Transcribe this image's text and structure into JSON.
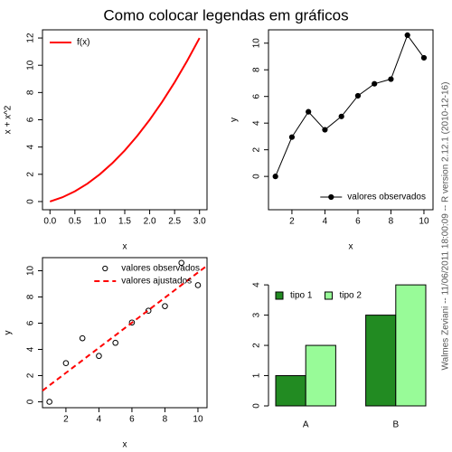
{
  "title": "Como colocar legendas em gráficos",
  "caption": "Walmes Zeviani -- 11/06/2011 18:00:09 -- R version 2.12.1 (2010-12-16)",
  "chart_data": [
    {
      "type": "line",
      "xlabel": "x",
      "ylabel": "x + x^2",
      "xlim": [
        -0.15,
        3.15
      ],
      "ylim": [
        -0.6,
        12.6
      ],
      "xticks": [
        {
          "value": 0,
          "label": "0.0"
        },
        {
          "value": 0.5,
          "label": "0.5"
        },
        {
          "value": 1,
          "label": "1.0"
        },
        {
          "value": 1.5,
          "label": "1.5"
        },
        {
          "value": 2,
          "label": "2.0"
        },
        {
          "value": 2.5,
          "label": "2.5"
        },
        {
          "value": 3,
          "label": "3.0"
        }
      ],
      "yticks": [
        0,
        2,
        4,
        6,
        8,
        10,
        12
      ],
      "legend": "topleft",
      "series": [
        {
          "name": "f(x)",
          "color": "#ff0000",
          "line_width": 2,
          "x": [
            0,
            0.25,
            0.5,
            0.75,
            1,
            1.25,
            1.5,
            1.75,
            2,
            2.25,
            2.5,
            2.75,
            3
          ],
          "values": [
            0,
            0.3125,
            0.75,
            1.3125,
            2,
            2.8125,
            3.75,
            4.8125,
            6,
            7.3125,
            8.75,
            10.3125,
            12
          ]
        }
      ]
    },
    {
      "type": "line",
      "xlabel": "x",
      "ylabel": "y",
      "xlim": [
        0.58,
        10.55
      ],
      "ylim": [
        -2.5,
        11
      ],
      "xticks": [
        2,
        4,
        6,
        8,
        10
      ],
      "yticks": [
        0,
        2,
        4,
        6,
        8,
        10
      ],
      "legend": "bottomright",
      "series": [
        {
          "name": "valores observados",
          "color": "#000000",
          "marker": "filled",
          "x": [
            1,
            2,
            3,
            4,
            5,
            6,
            7,
            8,
            9,
            10
          ],
          "values": [
            0,
            2.95,
            4.85,
            3.5,
            4.5,
            6.05,
            6.95,
            7.3,
            10.6,
            8.9
          ]
        }
      ]
    },
    {
      "type": "scatter",
      "xlabel": "x",
      "ylabel": "y",
      "xlim": [
        0.58,
        10.55
      ],
      "ylim": [
        -0.45,
        11
      ],
      "xticks": [
        2,
        4,
        6,
        8,
        10
      ],
      "yticks": [
        0,
        2,
        4,
        6,
        8,
        10
      ],
      "legend": "topright",
      "series": [
        {
          "name": "valores observados",
          "color": "#000000",
          "marker": "open",
          "x": [
            1,
            2,
            3,
            4,
            5,
            6,
            7,
            8,
            9,
            10
          ],
          "values": [
            0,
            2.95,
            4.85,
            3.5,
            4.5,
            6.05,
            6.95,
            7.3,
            10.6,
            8.9
          ]
        },
        {
          "name": "valores ajustados",
          "color": "#ff0000",
          "line_style": "dashed",
          "line_width": 2,
          "x": [
            0.58,
            10.55
          ],
          "values": [
            0.85,
            10.39
          ]
        }
      ]
    },
    {
      "type": "bar",
      "categories": [
        "A",
        "B"
      ],
      "ylim": [
        0,
        4.9
      ],
      "yticks": [
        0,
        1,
        2,
        3,
        4
      ],
      "legend": "topleft",
      "series": [
        {
          "name": "tipo 1",
          "color": "#228b22",
          "values": [
            1,
            3
          ]
        },
        {
          "name": "tipo 2",
          "color": "#98fb98",
          "values": [
            2,
            4
          ]
        }
      ]
    }
  ]
}
